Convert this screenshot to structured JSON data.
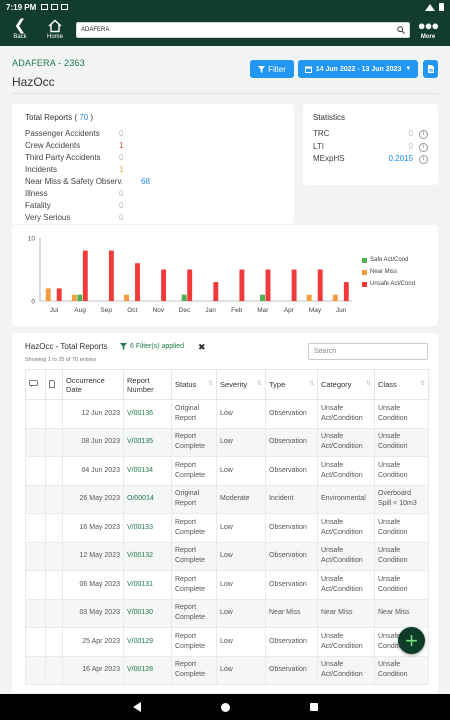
{
  "status_bar": {
    "time": "7:19 PM"
  },
  "app_bar": {
    "back_label": "Back",
    "home_label": "Home",
    "more_label": "More",
    "search_value": "ADAFERA",
    "icons": [
      "back-arrow-icon",
      "home-icon",
      "search-icon",
      "more-dots-icon"
    ]
  },
  "header": {
    "vessel": "ADAFERA - 2363",
    "title": "HazOcc",
    "filter_label": "Filter",
    "date_range": "14 Jun 2022 - 13 Jun 2023"
  },
  "total_reports": {
    "title": "Total Reports",
    "total": "70",
    "rows": [
      {
        "label": "Passenger Accidents",
        "value": "0",
        "color": "#bbbbbb"
      },
      {
        "label": "Crew Accidents",
        "value": "1",
        "color": "#e53935"
      },
      {
        "label": "Third Party Accidents",
        "value": "0",
        "color": "#bbbbbb"
      },
      {
        "label": "Incidents",
        "value": "1",
        "color": "#f0a040"
      },
      {
        "label": "Near Miss & Safety Observ.",
        "value": "68",
        "color": "#1e88e5"
      },
      {
        "label": "Illness",
        "value": "0",
        "color": "#bbbbbb"
      },
      {
        "label": "Fatality",
        "value": "0",
        "color": "#bbbbbb"
      },
      {
        "label": "Very Serious",
        "value": "0",
        "color": "#bbbbbb"
      }
    ]
  },
  "statistics": {
    "title": "Statistics",
    "rows": [
      {
        "label": "TRC",
        "value": "0",
        "color": "#bbbbbb"
      },
      {
        "label": "LTI",
        "value": "0",
        "color": "#bbbbbb"
      },
      {
        "label": "MExpHS",
        "value": "0.2015",
        "color": "#1e88e5"
      }
    ]
  },
  "chart_data": {
    "type": "bar",
    "categories": [
      "Jul",
      "Aug",
      "Sep",
      "Oct",
      "Nov",
      "Dec",
      "Jan",
      "Feb",
      "Mar",
      "Apr",
      "May",
      "Jun"
    ],
    "series": [
      {
        "name": "Safe Act/Cond",
        "color": "#4caf50",
        "values": [
          0,
          1,
          0,
          0,
          0,
          1,
          0,
          0,
          1,
          0,
          0,
          0
        ]
      },
      {
        "name": "Near Miss",
        "color": "#f39c3d",
        "values": [
          2,
          1,
          0,
          1,
          0,
          0,
          0,
          0,
          0,
          0,
          1,
          1
        ]
      },
      {
        "name": "Unsafe Act/Cond",
        "color": "#f03a3a",
        "values": [
          2,
          8,
          8,
          6,
          5,
          5,
          3,
          5,
          5,
          5,
          5,
          3
        ]
      }
    ],
    "y_ticks": [
      "0",
      "10"
    ],
    "ylim": [
      0,
      10
    ],
    "legend_position": "right",
    "grid": false
  },
  "table": {
    "title": "HazOcc - Total Reports",
    "filters_label": "6 Filter(s) applied",
    "showing": "Showing 1 to 25 of 70 entries",
    "search_placeholder": "Search",
    "columns": [
      "Occurrence Date",
      "Report Number",
      "Status",
      "Severity",
      "Type",
      "Category",
      "Class"
    ],
    "rows": [
      {
        "date": "12 Jun 2023",
        "number": "V/00136",
        "status": "Original Report",
        "status_color": "orange",
        "severity": "Low",
        "type": "Observation",
        "category": "Unsafe Act/Condition",
        "class": "Unsafe Condition"
      },
      {
        "date": "08 Jun 2023",
        "number": "V/00135",
        "status": "Report Complete",
        "status_color": "green",
        "severity": "Low",
        "type": "Observation",
        "category": "Unsafe Act/Condition",
        "class": "Unsafe Condition"
      },
      {
        "date": "04 Jun 2023",
        "number": "V/00134",
        "status": "Report Complete",
        "status_color": "green",
        "severity": "Low",
        "type": "Observation",
        "category": "Unsafe Act/Condition",
        "class": "Unsafe Condition"
      },
      {
        "date": "26 May 2023",
        "number": "O/00014",
        "status": "Original Report",
        "status_color": "orange",
        "severity": "Moderate",
        "type": "Incident",
        "category": "Environmental",
        "class": "Overboard Spill < 10m3"
      },
      {
        "date": "16 May 2023",
        "number": "V/00133",
        "status": "Report Complete",
        "status_color": "green",
        "severity": "Low",
        "type": "Observation",
        "category": "Unsafe Act/Condition",
        "class": "Unsafe Condition"
      },
      {
        "date": "12 May 2023",
        "number": "V/00132",
        "status": "Report Complete",
        "status_color": "green",
        "severity": "Low",
        "type": "Observation",
        "category": "Unsafe Act/Condition",
        "class": "Unsafe Condition"
      },
      {
        "date": "06 May 2023",
        "number": "V/00131",
        "status": "Report Complete",
        "status_color": "green",
        "severity": "Low",
        "type": "Observation",
        "category": "Unsafe Act/Condition",
        "class": "Unsafe Condition"
      },
      {
        "date": "03 May 2023",
        "number": "V/00130",
        "status": "Report Complete",
        "status_color": "green",
        "severity": "Low",
        "type": "Near Miss",
        "category": "Near Miss",
        "class": "Near Miss"
      },
      {
        "date": "25 Apr 2023",
        "number": "V/00129",
        "status": "Report Complete",
        "status_color": "green",
        "severity": "Low",
        "type": "Observation",
        "category": "Unsafe Act/Condition",
        "class": "Unsafe Condition"
      },
      {
        "date": "16 Apr 2023",
        "number": "V/00128",
        "status": "Report Complete",
        "status_color": "green",
        "severity": "Low",
        "type": "Observation",
        "category": "Unsafe Act/Condition",
        "class": "Unsafe Condition"
      }
    ]
  },
  "colors": {
    "brand_dark": "#123d2c",
    "accent_blue": "#2196f3",
    "brand_green": "#1d7a4a"
  }
}
